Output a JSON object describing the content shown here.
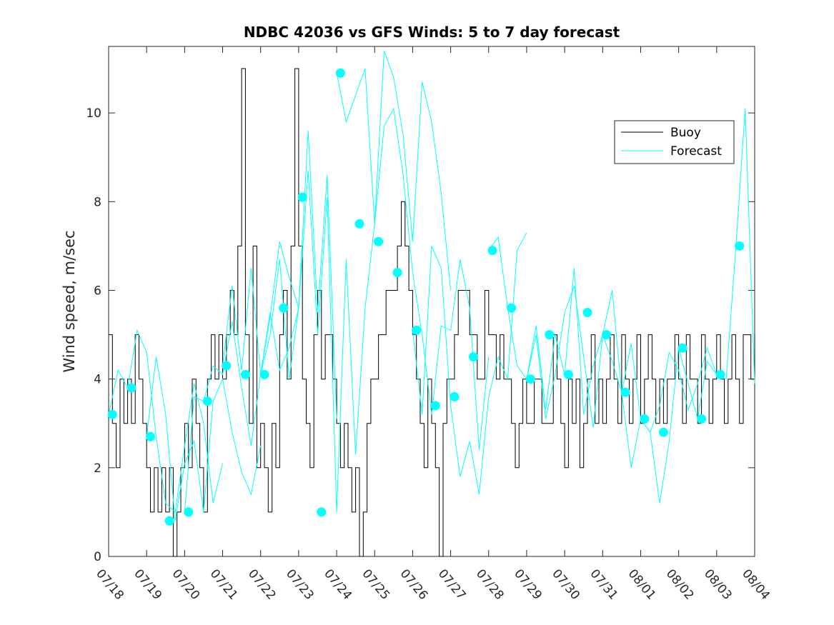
{
  "chart_data": {
    "type": "line",
    "title": "NDBC 42036 vs GFS Winds: 5 to 7 day forecast",
    "xlabel": "",
    "ylabel": "Wind speed, m/sec",
    "xlim": [
      0,
      17
    ],
    "ylim": [
      0,
      11.5
    ],
    "x_tick_labels": [
      "07/18",
      "07/19",
      "07/20",
      "07/21",
      "07/22",
      "07/23",
      "07/24",
      "07/25",
      "07/26",
      "07/27",
      "07/28",
      "07/29",
      "07/30",
      "07/31",
      "08/01",
      "08/02",
      "08/03",
      "08/04"
    ],
    "y_ticks": [
      0,
      2,
      4,
      6,
      8,
      10
    ],
    "grid": false,
    "legend": {
      "placement": "top-right",
      "entries": [
        "Buoy",
        "Forecast"
      ]
    },
    "colors": {
      "buoy": "#000000",
      "forecast": "#00ffff",
      "axes": "#262626"
    },
    "buoy_series": {
      "name": "Buoy",
      "x": [
        0,
        0.1,
        0.2,
        0.3,
        0.4,
        0.5,
        0.6,
        0.7,
        0.8,
        0.9,
        1.0,
        1.1,
        1.2,
        1.3,
        1.4,
        1.5,
        1.6,
        1.7,
        1.8,
        1.9,
        2.0,
        2.1,
        2.2,
        2.3,
        2.4,
        2.5,
        2.6,
        2.7,
        2.8,
        2.9,
        3.0,
        3.1,
        3.2,
        3.3,
        3.4,
        3.5,
        3.6,
        3.7,
        3.8,
        3.9,
        4.0,
        4.1,
        4.2,
        4.3,
        4.4,
        4.5,
        4.6,
        4.7,
        4.8,
        4.9,
        5.0,
        5.1,
        5.2,
        5.3,
        5.4,
        5.5,
        5.6,
        5.7,
        5.8,
        5.9,
        6.0,
        6.1,
        6.2,
        6.3,
        6.4,
        6.5,
        6.6,
        6.7,
        6.8,
        6.9,
        7.0,
        7.1,
        7.2,
        7.3,
        7.4,
        7.5,
        7.6,
        7.7,
        7.8,
        7.9,
        8.0,
        8.1,
        8.2,
        8.3,
        8.4,
        8.5,
        8.6,
        8.7,
        8.8,
        8.9,
        9.0,
        9.1,
        9.2,
        9.3,
        9.4,
        9.5,
        9.6,
        9.7,
        9.8,
        9.9,
        10.0,
        10.1,
        10.2,
        10.3,
        10.4,
        10.5,
        10.6,
        10.7,
        10.8,
        10.9,
        11.0,
        11.1,
        11.2,
        11.3,
        11.4,
        11.5,
        11.6,
        11.7,
        11.8,
        11.9,
        12.0,
        12.1,
        12.2,
        12.3,
        12.4,
        12.5,
        12.6,
        12.7,
        12.8,
        12.9,
        13.0,
        13.1,
        13.2,
        13.3,
        13.4,
        13.5,
        13.6,
        13.7,
        13.8,
        13.9,
        14.0,
        14.1,
        14.2,
        14.3,
        14.4,
        14.5,
        14.6,
        14.7,
        14.8,
        14.9,
        15.0,
        15.1,
        15.2,
        15.3,
        15.4,
        15.5,
        15.6,
        15.7,
        15.8,
        15.9,
        16.0,
        16.1,
        16.2,
        16.3,
        16.4,
        16.5,
        16.6,
        16.7,
        16.8,
        16.9,
        17.0
      ],
      "y": [
        5,
        3,
        2,
        4,
        3,
        4,
        3,
        5,
        4,
        3,
        2,
        1,
        2,
        1,
        2,
        1,
        2,
        0,
        1,
        2,
        3,
        2,
        4,
        3,
        2,
        1,
        4,
        5,
        4,
        5,
        4,
        5,
        6,
        5,
        7,
        11,
        5,
        3,
        7,
        2,
        3,
        2,
        1,
        3,
        2,
        5,
        6,
        4,
        7,
        11,
        7,
        4,
        3,
        2,
        5,
        6,
        4,
        5,
        5,
        4,
        3,
        2,
        3,
        2,
        1,
        2,
        0,
        1,
        3,
        4,
        4,
        5,
        5,
        6,
        6,
        6,
        7,
        8,
        7,
        6,
        5,
        4,
        3,
        2,
        4,
        3,
        2,
        0,
        3,
        4,
        4,
        5,
        6,
        6,
        6,
        5,
        5,
        4,
        4,
        6,
        5,
        5,
        4,
        5,
        4,
        4,
        3,
        2,
        3,
        4,
        3,
        3,
        4,
        4,
        3,
        3,
        3,
        5,
        4,
        3,
        2,
        4,
        3,
        4,
        2,
        3,
        4,
        5,
        3,
        4,
        3,
        4,
        5,
        4,
        3,
        5,
        4,
        3,
        4,
        5,
        3,
        4,
        5,
        4,
        3,
        4,
        3,
        4,
        4,
        5,
        4,
        3,
        5,
        4,
        4,
        3,
        5,
        4,
        3,
        4,
        5,
        4,
        3,
        4,
        5,
        4,
        3,
        5,
        5,
        4,
        5
      ]
    },
    "forecast_series": [
      {
        "name": "Forecast",
        "x": [
          0,
          0.25,
          0.5,
          0.75,
          1.0,
          1.25,
          1.5,
          1.75,
          2.0,
          2.25,
          2.5,
          2.75,
          3.0
        ],
        "y": [
          3.2,
          4.2,
          3.8,
          5.1,
          4.6,
          2.7,
          1.2,
          1.0,
          2.5,
          3.9,
          3.0,
          1.2,
          2.1
        ]
      },
      {
        "name": "",
        "x": [
          1.0,
          1.25,
          1.5,
          1.75,
          2.0,
          2.25,
          2.5,
          2.75,
          3.0,
          3.25,
          3.5,
          3.75,
          4.0
        ],
        "y": [
          2.7,
          4.5,
          3.2,
          0.8,
          2.1,
          2.6,
          1.0,
          3.5,
          4.0,
          2.8,
          1.9,
          1.4,
          2.5
        ]
      },
      {
        "name": "",
        "x": [
          2.0,
          2.25,
          2.5,
          2.75,
          3.0,
          3.25,
          3.5,
          3.75,
          4.0,
          4.25,
          4.5,
          4.75,
          5.0
        ],
        "y": [
          1.0,
          3.6,
          3.5,
          4.3,
          4.1,
          5.3,
          3.8,
          2.5,
          4.1,
          5.5,
          4.2,
          4.7,
          5.6
        ]
      },
      {
        "name": "",
        "x": [
          3.0,
          3.25,
          3.5,
          3.75,
          4.0,
          4.25,
          4.5,
          4.75,
          5.0,
          5.25,
          5.5,
          5.75,
          6.0
        ],
        "y": [
          4.3,
          6.1,
          4.2,
          6.5,
          4.1,
          5.0,
          6.7,
          4.0,
          5.6,
          9.6,
          5.5,
          8.6,
          3.1
        ]
      },
      {
        "name": "",
        "x": [
          4.0,
          4.25,
          4.5,
          4.75,
          5.0,
          5.25,
          5.5,
          5.75,
          6.0,
          6.25,
          6.5,
          6.75,
          7.0
        ],
        "y": [
          4.1,
          5.4,
          7.1,
          6.3,
          5.6,
          8.7,
          5.0,
          8.1,
          1.0,
          6.7,
          2.3,
          5.6,
          7.5
        ]
      },
      {
        "name": "",
        "x": [
          6.0,
          6.25,
          6.5,
          6.75,
          7.0,
          7.25,
          7.5,
          7.75,
          8.0,
          8.25,
          8.5,
          8.75,
          9.0
        ],
        "y": [
          10.9,
          9.8,
          10.4,
          11.0,
          7.5,
          11.4,
          10.8,
          9.5,
          7.1,
          10.7,
          9.8,
          8.2,
          6.0
        ]
      },
      {
        "name": "",
        "x": [
          7.0,
          7.25,
          7.5,
          7.75,
          8.0,
          8.25,
          8.5,
          8.75,
          9.0,
          9.25,
          9.5,
          9.75,
          10.0
        ],
        "y": [
          7.5,
          9.7,
          10.1,
          8.6,
          6.4,
          5.0,
          3.2,
          5.2,
          5.1,
          6.7,
          5.6,
          2.4,
          4.5
        ]
      },
      {
        "name": "",
        "x": [
          8.0,
          8.25,
          8.5,
          8.75,
          9.0,
          9.25,
          9.5,
          9.75,
          10.0,
          10.25,
          10.5,
          10.75,
          11.0
        ],
        "y": [
          5.1,
          3.2,
          7.0,
          6.5,
          3.4,
          1.8,
          2.6,
          1.4,
          3.6,
          4.5,
          4.0,
          6.9,
          7.3
        ]
      },
      {
        "name": "",
        "x": [
          10.0,
          10.25,
          10.5,
          10.75,
          11.0,
          11.25,
          11.5,
          11.75,
          12.0,
          12.25,
          12.5,
          12.75,
          13.0
        ],
        "y": [
          6.9,
          7.2,
          5.6,
          4.3,
          4.0,
          5.2,
          3.3,
          5.0,
          4.1,
          6.5,
          3.2,
          4.3,
          5.0
        ]
      },
      {
        "name": "",
        "x": [
          11.0,
          11.25,
          11.5,
          11.75,
          12.0,
          12.25,
          12.5,
          12.75,
          13.0,
          13.25,
          13.5,
          13.75,
          14.0
        ],
        "y": [
          4.0,
          5.0,
          3.1,
          4.1,
          5.5,
          6.1,
          4.5,
          2.9,
          5.0,
          6.0,
          3.7,
          4.8,
          3.1
        ]
      },
      {
        "name": "",
        "x": [
          13.0,
          13.25,
          13.5,
          13.75,
          14.0,
          14.25,
          14.5,
          14.75,
          15.0,
          15.25,
          15.5,
          15.75,
          16.0
        ],
        "y": [
          5.0,
          4.4,
          3.7,
          2.0,
          3.1,
          2.8,
          1.2,
          2.6,
          4.7,
          3.9,
          3.1,
          4.4,
          4.1
        ]
      },
      {
        "name": "",
        "x": [
          14.0,
          14.25,
          14.5,
          14.75,
          15.0,
          15.25,
          15.5,
          15.75,
          16.0,
          16.25,
          16.5,
          16.75,
          17.0
        ],
        "y": [
          3.1,
          2.8,
          3.4,
          4.6,
          4.2,
          3.3,
          3.9,
          4.7,
          4.1,
          4.0,
          6.9,
          10.1,
          3.9
        ]
      }
    ],
    "forecast_markers": {
      "x": [
        0.1,
        0.6,
        1.1,
        1.6,
        2.1,
        2.6,
        3.1,
        3.6,
        4.1,
        4.6,
        5.1,
        5.6,
        6.1,
        6.6,
        7.1,
        7.6,
        8.1,
        8.6,
        9.1,
        9.6,
        10.1,
        10.6,
        11.1,
        11.6,
        12.1,
        12.6,
        13.1,
        13.6,
        14.1,
        14.6,
        15.1,
        15.6,
        16.1,
        16.6
      ],
      "y": [
        3.2,
        3.8,
        2.7,
        0.8,
        1.0,
        3.5,
        4.3,
        4.1,
        4.1,
        5.6,
        8.1,
        1.0,
        10.9,
        7.5,
        7.1,
        6.4,
        5.1,
        3.4,
        3.6,
        4.5,
        6.9,
        5.6,
        4.0,
        5.0,
        4.1,
        5.5,
        5.0,
        3.7,
        3.1,
        2.8,
        4.7,
        3.1,
        4.1,
        7.0
      ]
    }
  }
}
